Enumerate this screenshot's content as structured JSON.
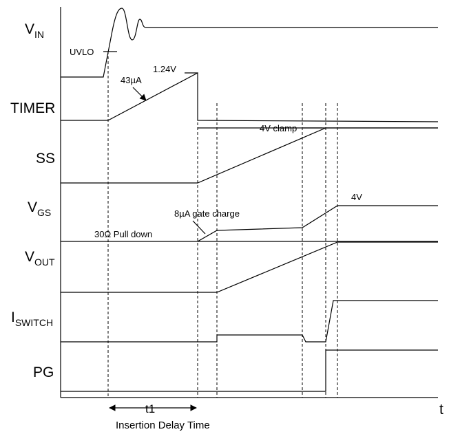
{
  "signals": {
    "vin": {
      "main": "V",
      "sub": "IN"
    },
    "timer": {
      "main": "TIMER"
    },
    "ss": {
      "main": "SS"
    },
    "vgs": {
      "main": "V",
      "sub": "GS"
    },
    "vout": {
      "main": "V",
      "sub": "OUT"
    },
    "iswitch": {
      "main": "I",
      "sub": "SWITCH"
    },
    "pg": {
      "main": "PG"
    }
  },
  "annotations": {
    "uvlo": "UVLO",
    "current_43ua": "43µA",
    "timer_peak": "1.24V",
    "clamp": "4V clamp",
    "vgs_level": "4V",
    "gate_charge": "8µA gate charge",
    "pull_down": "30Ω  Pull down",
    "t1": "t1",
    "insertion_delay": "Insertion Delay Time",
    "time_axis": "t"
  }
}
